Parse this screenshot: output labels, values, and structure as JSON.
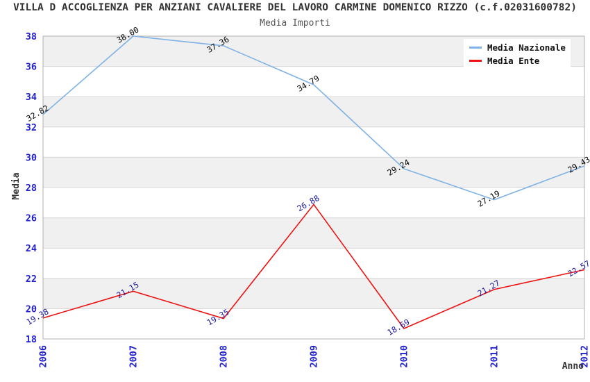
{
  "chart_data": {
    "type": "line",
    "title": "VILLA D ACCOGLIENZA PER ANZIANI CAVALIERE DEL LAVORO CARMINE DOMENICO RIZZO (c.f.02031600782)",
    "subtitle": "Media Importi",
    "x": [
      "2006",
      "2007",
      "2008",
      "2009",
      "2010",
      "2011",
      "2012"
    ],
    "xlabel": "Anno",
    "ylabel": "Media",
    "ylim": [
      18,
      38
    ],
    "ytick_step": 2,
    "grid": true,
    "legend_position": "top-right",
    "series": [
      {
        "name": "Media Nazionale",
        "color": "#7FB2E5",
        "label_color": "#000000",
        "values": [
          32.82,
          38.0,
          37.36,
          34.79,
          29.24,
          27.19,
          29.43
        ]
      },
      {
        "name": "Media Ente",
        "color": "#EE1111",
        "label_color": "#1A1A99",
        "values": [
          19.38,
          21.15,
          19.35,
          26.88,
          18.69,
          21.27,
          22.57
        ]
      }
    ],
    "styles": {
      "band_fill": "#F0F0F0",
      "grid_color": "#D6D6D6",
      "frame_color": "#B0B0B0",
      "tick_label_color": "#2222CC",
      "axis_title_color": "#333333",
      "background": "#FFFFFF"
    }
  }
}
